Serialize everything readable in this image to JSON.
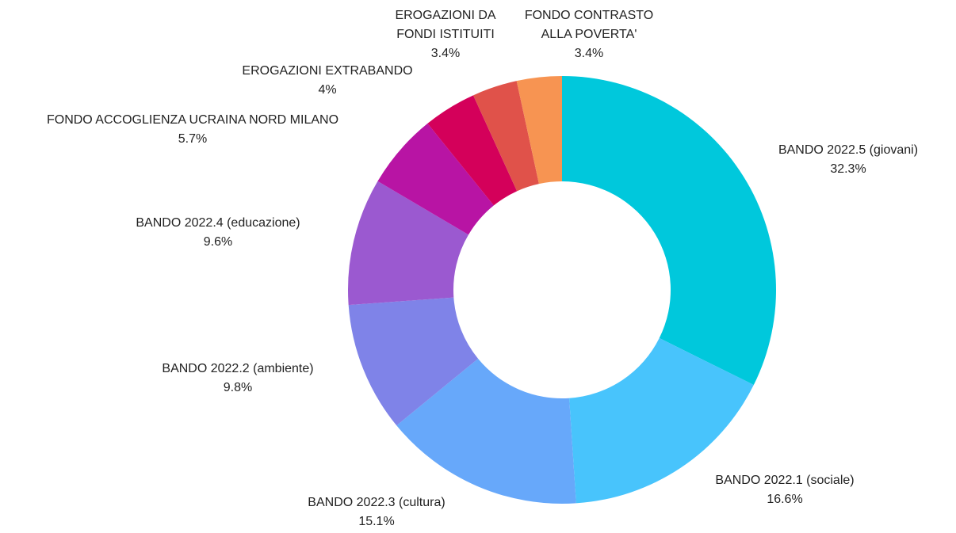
{
  "chart_data": {
    "type": "donut",
    "categories": [
      "BANDO 2022.5 (giovani)",
      "BANDO 2022.1 (sociale)",
      "BANDO 2022.3 (cultura)",
      "BANDO 2022.2 (ambiente)",
      "BANDO 2022.4 (educazione)",
      "FONDO ACCOGLIENZA UCRAINA NORD MILANO",
      "EROGAZIONI EXTRABANDO",
      "EROGAZIONI DA FONDI ISTITUITI",
      "FONDO CONTRASTO ALLA POVERTA'"
    ],
    "values": [
      32.3,
      16.6,
      15.1,
      9.8,
      9.6,
      5.7,
      4,
      3.4,
      3.4
    ],
    "value_labels": [
      "32.3%",
      "16.6%",
      "15.1%",
      "9.8%",
      "9.6%",
      "5.7%",
      "4%",
      "3.4%",
      "3.4%"
    ],
    "colors": [
      "#00c8dc",
      "#48c4fc",
      "#67a8fa",
      "#7f83e8",
      "#9b59d0",
      "#b814a4",
      "#d4005a",
      "#e0524a",
      "#f79452"
    ]
  }
}
